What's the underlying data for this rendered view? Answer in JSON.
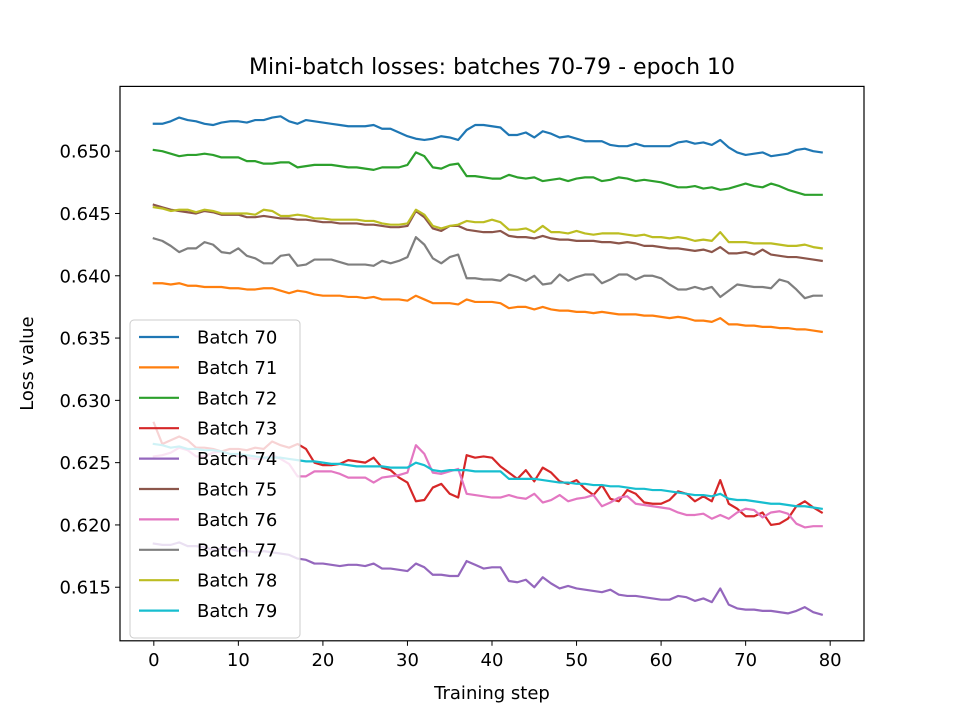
{
  "chart_data": {
    "type": "line",
    "title": "Mini-batch losses: batches 70-79 - epoch 10",
    "xlabel": "Training step",
    "ylabel": "Loss value",
    "xlim": [
      -4,
      84
    ],
    "ylim": [
      0.6107,
      0.6552
    ],
    "xticks": [
      0,
      10,
      20,
      30,
      40,
      50,
      60,
      70,
      80
    ],
    "yticks": [
      0.615,
      0.62,
      0.625,
      0.63,
      0.635,
      0.64,
      0.645,
      0.65
    ],
    "ytick_labels": [
      "0.615",
      "0.620",
      "0.625",
      "0.630",
      "0.635",
      "0.640",
      "0.645",
      "0.650"
    ],
    "grid": false,
    "legend_position": "lower-left",
    "x": [
      0,
      1,
      2,
      3,
      4,
      5,
      6,
      7,
      8,
      9,
      10,
      11,
      12,
      13,
      14,
      15,
      16,
      17,
      18,
      19,
      20,
      21,
      22,
      23,
      24,
      25,
      26,
      27,
      28,
      29,
      30,
      31,
      32,
      33,
      34,
      35,
      36,
      37,
      38,
      39,
      40,
      41,
      42,
      43,
      44,
      45,
      46,
      47,
      48,
      49,
      50,
      51,
      52,
      53,
      54,
      55,
      56,
      57,
      58,
      59,
      60,
      61,
      62,
      63,
      64,
      65,
      66,
      67,
      68,
      69,
      70,
      71,
      72,
      73,
      74,
      75,
      76,
      77,
      78,
      79
    ],
    "series": [
      {
        "name": "Batch 70",
        "color": "#1f77b4",
        "values": [
          0.6522,
          0.6522,
          0.6524,
          0.6527,
          0.6525,
          0.6524,
          0.6522,
          0.6521,
          0.6523,
          0.6524,
          0.6524,
          0.6523,
          0.6525,
          0.6525,
          0.6527,
          0.6528,
          0.6524,
          0.6522,
          0.6525,
          0.6524,
          0.6523,
          0.6522,
          0.6521,
          0.652,
          0.652,
          0.652,
          0.6521,
          0.6518,
          0.6518,
          0.6515,
          0.6512,
          0.651,
          0.6509,
          0.651,
          0.6512,
          0.6511,
          0.6509,
          0.6517,
          0.6521,
          0.6521,
          0.652,
          0.6519,
          0.6513,
          0.6513,
          0.6515,
          0.6511,
          0.6516,
          0.6514,
          0.6511,
          0.6512,
          0.651,
          0.6508,
          0.6508,
          0.6508,
          0.6505,
          0.6504,
          0.6504,
          0.6506,
          0.6504,
          0.6504,
          0.6504,
          0.6504,
          0.6507,
          0.6508,
          0.6506,
          0.6507,
          0.6505,
          0.6509,
          0.6503,
          0.6499,
          0.6497,
          0.6498,
          0.6499,
          0.6496,
          0.6497,
          0.6498,
          0.6501,
          0.6502,
          0.65,
          0.6499
        ]
      },
      {
        "name": "Batch 71",
        "color": "#ff7f0e",
        "values": [
          0.6394,
          0.6394,
          0.6393,
          0.6394,
          0.6392,
          0.6392,
          0.6391,
          0.6391,
          0.6391,
          0.639,
          0.639,
          0.6389,
          0.6389,
          0.639,
          0.639,
          0.6388,
          0.6386,
          0.6388,
          0.6387,
          0.6385,
          0.6384,
          0.6384,
          0.6384,
          0.6383,
          0.6383,
          0.6382,
          0.6383,
          0.6381,
          0.6381,
          0.6381,
          0.638,
          0.6384,
          0.6381,
          0.6378,
          0.6378,
          0.6378,
          0.6377,
          0.6381,
          0.6379,
          0.6379,
          0.6379,
          0.6378,
          0.6374,
          0.6375,
          0.6375,
          0.6373,
          0.6375,
          0.6373,
          0.6372,
          0.6372,
          0.6371,
          0.6371,
          0.637,
          0.6371,
          0.637,
          0.6369,
          0.6369,
          0.6369,
          0.6368,
          0.6368,
          0.6367,
          0.6366,
          0.6367,
          0.6366,
          0.6364,
          0.6364,
          0.6363,
          0.6366,
          0.6361,
          0.6361,
          0.636,
          0.636,
          0.6359,
          0.6359,
          0.6358,
          0.6358,
          0.6357,
          0.6357,
          0.6356,
          0.6355
        ]
      },
      {
        "name": "Batch 72",
        "color": "#2ca02c",
        "values": [
          0.6501,
          0.65,
          0.6498,
          0.6496,
          0.6497,
          0.6497,
          0.6498,
          0.6497,
          0.6495,
          0.6495,
          0.6495,
          0.6492,
          0.6492,
          0.649,
          0.649,
          0.6491,
          0.6491,
          0.6487,
          0.6488,
          0.6489,
          0.6489,
          0.6489,
          0.6488,
          0.6487,
          0.6487,
          0.6486,
          0.6485,
          0.6487,
          0.6487,
          0.6487,
          0.6489,
          0.6499,
          0.6496,
          0.6487,
          0.6486,
          0.6489,
          0.649,
          0.648,
          0.648,
          0.6479,
          0.6478,
          0.6478,
          0.6481,
          0.6479,
          0.6478,
          0.6479,
          0.6476,
          0.6477,
          0.6478,
          0.6476,
          0.6478,
          0.6479,
          0.6479,
          0.6476,
          0.6477,
          0.6479,
          0.6478,
          0.6476,
          0.6477,
          0.6476,
          0.6475,
          0.6473,
          0.6471,
          0.6471,
          0.6472,
          0.647,
          0.6471,
          0.6469,
          0.647,
          0.6472,
          0.6474,
          0.6472,
          0.6471,
          0.6474,
          0.6472,
          0.6469,
          0.6467,
          0.6465,
          0.6465,
          0.6465
        ]
      },
      {
        "name": "Batch 73",
        "color": "#d62728",
        "values": [
          0.6282,
          0.6265,
          0.6268,
          0.6271,
          0.6268,
          0.6262,
          0.6262,
          0.6261,
          0.6259,
          0.6261,
          0.6261,
          0.626,
          0.6262,
          0.6261,
          0.6267,
          0.6264,
          0.6262,
          0.6265,
          0.6261,
          0.625,
          0.6248,
          0.6248,
          0.6249,
          0.6252,
          0.6251,
          0.625,
          0.6254,
          0.6246,
          0.6244,
          0.6238,
          0.6234,
          0.6219,
          0.622,
          0.623,
          0.6233,
          0.6225,
          0.6222,
          0.6256,
          0.6254,
          0.6255,
          0.6254,
          0.6247,
          0.6242,
          0.6237,
          0.6244,
          0.6235,
          0.6246,
          0.6242,
          0.6235,
          0.6233,
          0.6236,
          0.6229,
          0.6224,
          0.6232,
          0.6221,
          0.6219,
          0.6228,
          0.6225,
          0.6218,
          0.6217,
          0.6217,
          0.622,
          0.6227,
          0.6225,
          0.6219,
          0.6223,
          0.6219,
          0.6236,
          0.6217,
          0.6213,
          0.6207,
          0.6207,
          0.621,
          0.62,
          0.6201,
          0.6205,
          0.6215,
          0.6219,
          0.6214,
          0.621
        ]
      },
      {
        "name": "Batch 74",
        "color": "#9467bd",
        "values": [
          0.6185,
          0.6184,
          0.6184,
          0.6186,
          0.6183,
          0.6183,
          0.6182,
          0.618,
          0.6181,
          0.6181,
          0.6179,
          0.6179,
          0.6178,
          0.6179,
          0.6178,
          0.6177,
          0.6176,
          0.6173,
          0.6172,
          0.6169,
          0.6169,
          0.6168,
          0.6167,
          0.6168,
          0.6168,
          0.6167,
          0.6169,
          0.6165,
          0.6165,
          0.6164,
          0.6163,
          0.6169,
          0.6166,
          0.616,
          0.616,
          0.6159,
          0.6159,
          0.6171,
          0.6168,
          0.6165,
          0.6166,
          0.6166,
          0.6155,
          0.6154,
          0.6156,
          0.615,
          0.6158,
          0.6153,
          0.6149,
          0.6151,
          0.6149,
          0.6148,
          0.6147,
          0.6146,
          0.6148,
          0.6144,
          0.6143,
          0.6143,
          0.6142,
          0.6141,
          0.614,
          0.614,
          0.6143,
          0.6142,
          0.6139,
          0.6141,
          0.6138,
          0.6149,
          0.6136,
          0.6133,
          0.6132,
          0.6132,
          0.6131,
          0.6131,
          0.613,
          0.6129,
          0.6131,
          0.6134,
          0.613,
          0.6128
        ]
      },
      {
        "name": "Batch 75",
        "color": "#8c564b",
        "values": [
          0.6457,
          0.6455,
          0.6453,
          0.6452,
          0.6451,
          0.645,
          0.6452,
          0.6451,
          0.6449,
          0.6449,
          0.6449,
          0.6447,
          0.6447,
          0.6448,
          0.6447,
          0.6446,
          0.6446,
          0.6445,
          0.6445,
          0.6444,
          0.6443,
          0.6443,
          0.6442,
          0.6442,
          0.6442,
          0.6441,
          0.6441,
          0.644,
          0.6439,
          0.6439,
          0.644,
          0.6452,
          0.6447,
          0.6438,
          0.6436,
          0.644,
          0.644,
          0.6437,
          0.6436,
          0.6435,
          0.6435,
          0.6436,
          0.6432,
          0.6431,
          0.6431,
          0.643,
          0.6432,
          0.643,
          0.6429,
          0.6429,
          0.6428,
          0.6428,
          0.6428,
          0.6427,
          0.6427,
          0.6426,
          0.6427,
          0.6426,
          0.6424,
          0.6424,
          0.6423,
          0.6422,
          0.6422,
          0.6421,
          0.642,
          0.6421,
          0.6419,
          0.6423,
          0.6418,
          0.6418,
          0.6419,
          0.6417,
          0.6421,
          0.6417,
          0.6416,
          0.6415,
          0.6415,
          0.6414,
          0.6413,
          0.6412
        ]
      },
      {
        "name": "Batch 76",
        "color": "#e377c2",
        "values": [
          0.6255,
          0.6256,
          0.6258,
          0.6262,
          0.626,
          0.6255,
          0.6255,
          0.6258,
          0.6259,
          0.6257,
          0.6255,
          0.6254,
          0.6253,
          0.6253,
          0.6256,
          0.6253,
          0.6249,
          0.6239,
          0.6239,
          0.6243,
          0.6243,
          0.6243,
          0.6241,
          0.6238,
          0.6238,
          0.6238,
          0.6234,
          0.6238,
          0.6239,
          0.624,
          0.6242,
          0.6264,
          0.6257,
          0.6242,
          0.6241,
          0.6243,
          0.6245,
          0.6225,
          0.6224,
          0.6223,
          0.6222,
          0.6222,
          0.6224,
          0.6222,
          0.6221,
          0.6225,
          0.6218,
          0.622,
          0.6224,
          0.6219,
          0.6221,
          0.6222,
          0.6224,
          0.6215,
          0.6218,
          0.6222,
          0.6223,
          0.6217,
          0.6216,
          0.6215,
          0.6214,
          0.6213,
          0.621,
          0.6208,
          0.6208,
          0.6209,
          0.6205,
          0.6208,
          0.6205,
          0.621,
          0.6213,
          0.6212,
          0.6206,
          0.621,
          0.6211,
          0.6209,
          0.6201,
          0.6198,
          0.6199,
          0.6199
        ]
      },
      {
        "name": "Batch 77",
        "color": "#7f7f7f",
        "values": [
          0.643,
          0.6428,
          0.6424,
          0.6419,
          0.6422,
          0.6422,
          0.6427,
          0.6425,
          0.6419,
          0.6418,
          0.6422,
          0.6416,
          0.6414,
          0.641,
          0.641,
          0.6416,
          0.6417,
          0.6408,
          0.6409,
          0.6413,
          0.6413,
          0.6413,
          0.6411,
          0.6409,
          0.6409,
          0.6409,
          0.6408,
          0.6412,
          0.641,
          0.6412,
          0.6415,
          0.6431,
          0.6425,
          0.6414,
          0.641,
          0.6415,
          0.6417,
          0.6398,
          0.6398,
          0.6397,
          0.6397,
          0.6396,
          0.6401,
          0.6399,
          0.6396,
          0.64,
          0.6393,
          0.6394,
          0.6401,
          0.6396,
          0.6399,
          0.6401,
          0.6401,
          0.6394,
          0.6397,
          0.6401,
          0.6401,
          0.6397,
          0.64,
          0.64,
          0.6398,
          0.6393,
          0.6389,
          0.6389,
          0.6391,
          0.6389,
          0.6391,
          0.6383,
          0.6388,
          0.6393,
          0.6392,
          0.6391,
          0.6391,
          0.639,
          0.6397,
          0.6395,
          0.6389,
          0.6382,
          0.6384,
          0.6384
        ]
      },
      {
        "name": "Batch 78",
        "color": "#bcbd22",
        "values": [
          0.6455,
          0.6454,
          0.6452,
          0.6453,
          0.6453,
          0.6451,
          0.6453,
          0.6452,
          0.645,
          0.645,
          0.645,
          0.645,
          0.6449,
          0.6453,
          0.6452,
          0.6448,
          0.6448,
          0.6449,
          0.6448,
          0.6446,
          0.6446,
          0.6445,
          0.6445,
          0.6445,
          0.6445,
          0.6444,
          0.6444,
          0.6442,
          0.6441,
          0.6441,
          0.6442,
          0.6453,
          0.6449,
          0.644,
          0.6438,
          0.644,
          0.6441,
          0.6444,
          0.6443,
          0.6443,
          0.6445,
          0.6443,
          0.6437,
          0.6437,
          0.6438,
          0.6435,
          0.644,
          0.6435,
          0.6435,
          0.6434,
          0.6436,
          0.6434,
          0.6433,
          0.6434,
          0.6434,
          0.6434,
          0.6433,
          0.6432,
          0.6433,
          0.6431,
          0.6431,
          0.643,
          0.6431,
          0.643,
          0.6428,
          0.6429,
          0.6428,
          0.6435,
          0.6427,
          0.6427,
          0.6427,
          0.6426,
          0.6426,
          0.6426,
          0.6425,
          0.6424,
          0.6424,
          0.6425,
          0.6423,
          0.6422
        ]
      },
      {
        "name": "Batch 79",
        "color": "#17becf",
        "values": [
          0.6265,
          0.6264,
          0.6262,
          0.6263,
          0.6261,
          0.6261,
          0.626,
          0.626,
          0.6259,
          0.6257,
          0.6257,
          0.6256,
          0.6255,
          0.6254,
          0.6254,
          0.6254,
          0.6253,
          0.6252,
          0.6251,
          0.6251,
          0.625,
          0.6249,
          0.6249,
          0.6248,
          0.6247,
          0.6247,
          0.6247,
          0.6247,
          0.6246,
          0.6246,
          0.6246,
          0.625,
          0.6248,
          0.6244,
          0.6243,
          0.6244,
          0.6244,
          0.6244,
          0.6243,
          0.6243,
          0.6243,
          0.6243,
          0.6237,
          0.6237,
          0.6237,
          0.6237,
          0.6236,
          0.6235,
          0.6234,
          0.6234,
          0.6233,
          0.6233,
          0.6232,
          0.6232,
          0.6231,
          0.6231,
          0.623,
          0.6229,
          0.6229,
          0.6228,
          0.6228,
          0.6227,
          0.6226,
          0.6225,
          0.6224,
          0.6224,
          0.6223,
          0.6225,
          0.6221,
          0.622,
          0.622,
          0.6219,
          0.6218,
          0.6217,
          0.6217,
          0.6216,
          0.6215,
          0.6215,
          0.6214,
          0.6213
        ]
      }
    ]
  }
}
